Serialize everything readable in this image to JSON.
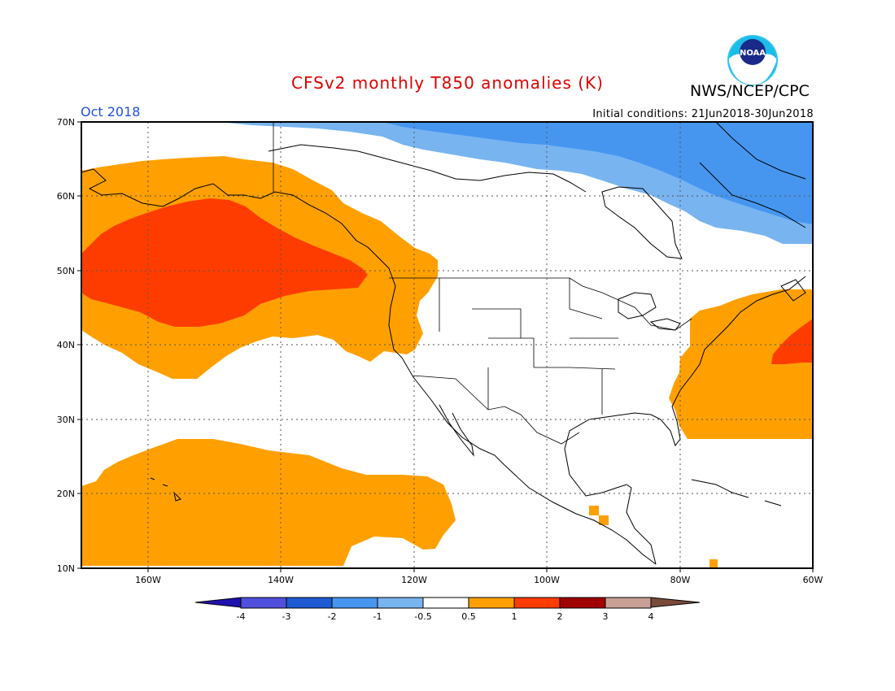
{
  "header": {
    "title": "CFSv2 monthly T850 anomalies (K)",
    "agency": "NWS/NCEP/CPC",
    "logo_text": "NOAA",
    "month": "Oct 2018",
    "initial_conditions": "Initial conditions: 21Jun2018-30Jun2018"
  },
  "map": {
    "lat_labels": [
      "70N",
      "60N",
      "50N",
      "40N",
      "30N",
      "20N",
      "10N"
    ],
    "lon_labels": [
      "160W",
      "140W",
      "120W",
      "100W",
      "80W",
      "60W"
    ],
    "lat_range": [
      10,
      70
    ],
    "lon_range": [
      -170,
      -60
    ],
    "anomaly_regions": [
      {
        "name": "NE Pacific warm anomaly",
        "level": "0.5 to 1",
        "color": "#ffa000"
      },
      {
        "name": "Gulf of Alaska strong warm core",
        "level": "1 to 2",
        "color": "#ff3c00"
      },
      {
        "name": "Subtropical Pacific near Hawaii",
        "level": "0.5 to 1",
        "color": "#ffa000"
      },
      {
        "name": "US East Coast / Western Atlantic",
        "level": "0.5 to 1",
        "color": "#ffa000"
      },
      {
        "name": "NW Atlantic core",
        "level": "1 to 2",
        "color": "#ff3c00"
      },
      {
        "name": "Central America patch",
        "level": "0.5 to 1",
        "color": "#ffa000"
      },
      {
        "name": "Northern Canada light cold",
        "level": "-1 to -0.5",
        "color": "#78b4f0"
      },
      {
        "name": "Northern Canada cold",
        "level": "-2 to -1",
        "color": "#4696f0"
      }
    ]
  },
  "colorbar": {
    "labels": [
      "-4",
      "-3",
      "-2",
      "-1",
      "-0.5",
      "0.5",
      "1",
      "2",
      "3",
      "4"
    ],
    "colors": [
      "#2010b0",
      "#5050dc",
      "#1e5ad2",
      "#4696f0",
      "#78b4f0",
      "#ffffff",
      "#ffa000",
      "#ff3c00",
      "#a00000",
      "#c8a096",
      "#7a4a3a"
    ]
  }
}
